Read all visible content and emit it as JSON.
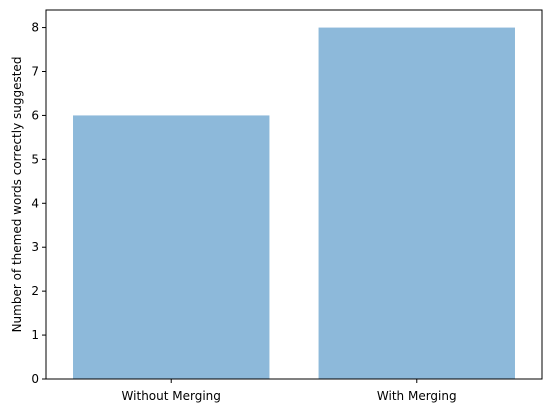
{
  "chart_data": {
    "type": "bar",
    "categories": [
      "Without Merging",
      "With Merging"
    ],
    "values": [
      6,
      8
    ],
    "title": "",
    "xlabel": "",
    "ylabel": "Number of themed words correctly suggested",
    "ylim": [
      0,
      8.4
    ],
    "yticks": [
      0,
      1,
      2,
      3,
      4,
      5,
      6,
      7,
      8
    ],
    "grid": false,
    "legend": "none",
    "bar_color": "#8db9da",
    "axis_color": "#000000"
  }
}
